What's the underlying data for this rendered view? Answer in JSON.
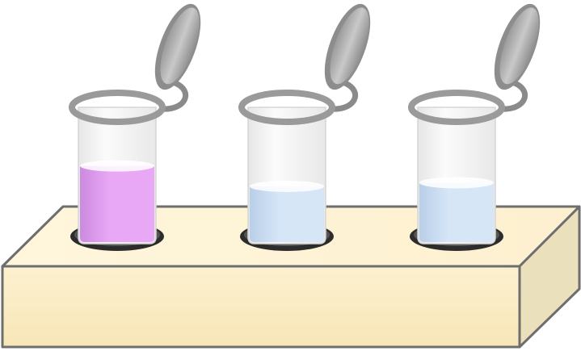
{
  "colors": {
    "rack_top": "#fdf3d6",
    "rack_front": "#fbedc6",
    "rack_side": "#ece2bf",
    "rack_edge": "#6e6e6e",
    "hole": "#2a2a2a",
    "tube_rim": "#9a9a9a",
    "lid": "#a8a8a8",
    "glass": "#f2f2f2"
  },
  "tubes": [
    {
      "liquid_color": "#e9a8f5",
      "liquid_shade": "#cc8ae0",
      "fill_level": 0.62
    },
    {
      "liquid_color": "#d6e6f7",
      "liquid_shade": "#b9cfe8",
      "fill_level": 0.45
    },
    {
      "liquid_color": "#d6e6f7",
      "liquid_shade": "#b9cfe8",
      "fill_level": 0.48
    }
  ]
}
